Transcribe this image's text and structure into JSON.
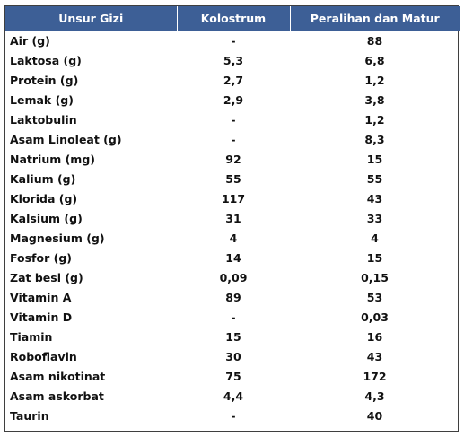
{
  "table": {
    "headers": [
      "Unsur Gizi",
      "Kolostrum",
      "Peralihan dan Matur"
    ],
    "rows": [
      [
        "Air (g)",
        "-",
        "88"
      ],
      [
        "Laktosa (g)",
        "5,3",
        "6,8"
      ],
      [
        "Protein (g)",
        "2,7",
        "1,2"
      ],
      [
        "Lemak (g)",
        "2,9",
        "3,8"
      ],
      [
        "Laktobulin",
        "-",
        "1,2"
      ],
      [
        "Asam Linoleat (g)",
        "-",
        "8,3"
      ],
      [
        "Natrium (mg)",
        "92",
        "15"
      ],
      [
        "Kalium (g)",
        "55",
        "55"
      ],
      [
        "Klorida (g)",
        "117",
        "43"
      ],
      [
        "Kalsium (g)",
        "31",
        "33"
      ],
      [
        "Magnesium (g)",
        "4",
        "4"
      ],
      [
        "Fosfor (g)",
        "14",
        "15"
      ],
      [
        "Zat besi (g)",
        "0,09",
        "0,15"
      ],
      [
        "Vitamin A",
        "89",
        "53"
      ],
      [
        "Vitamin D",
        "-",
        "0,03"
      ],
      [
        "Tiamin",
        "15",
        "16"
      ],
      [
        "Roboflavin",
        "30",
        "43"
      ],
      [
        "Asam nikotinat",
        "75",
        "172"
      ],
      [
        "Asam askorbat",
        "4,4",
        "4,3"
      ],
      [
        "Taurin",
        "-",
        "40"
      ]
    ]
  },
  "colors": {
    "header_bg": "#3d5f96",
    "header_text": "#ffffff",
    "border": "#3f3f3f"
  }
}
